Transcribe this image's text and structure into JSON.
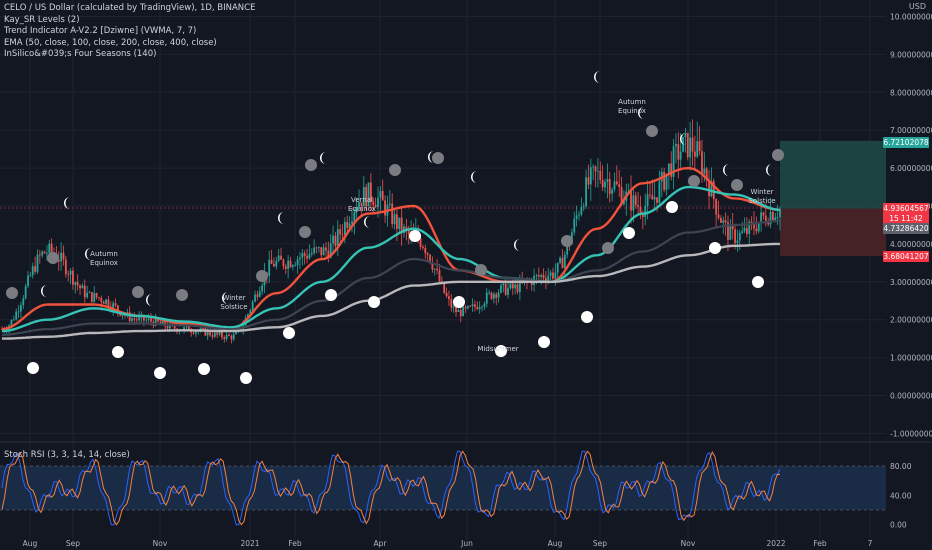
{
  "legend": {
    "symbol": "CELO / US Dollar (calculated by TradingView), 1D, BINANCE",
    "indicators": [
      "Kay_SR Levels (2)",
      "Trend Indicator A-V2.2 [Dziwne] (VWMA, 7, 7)",
      "EMA (50, close, 100, close, 200, close, 400, close)",
      "InSilico&#039;s Four Seasons (140)"
    ],
    "rsi": "Stoch RSI (3, 3, 14, 14, close)",
    "currency": "USD"
  },
  "colors": {
    "background": "#131722",
    "up": "#26a69a",
    "down": "#ef5350",
    "ema50": "#f0523c",
    "ema100": "#34c3b4",
    "ema200": "#3f4452",
    "ema400": "#b8b8bc",
    "rsi_k": "#2962ff",
    "rsi_d": "#f6823c",
    "rsi_band": "#1c3352"
  },
  "chart_data": [
    {
      "type": "line",
      "title": "CELO / US Dollar (calculated by TradingView), 1D, BINANCE",
      "ylabel": "USD",
      "ylim": [
        -1.2,
        10.5
      ],
      "y_ticks": [
        "-1.00000000",
        "0.00000000",
        "1.00000000",
        "2.00000000",
        "3.00000000",
        "4.00000000",
        "5.00000000",
        "6.00000000",
        "7.00000000",
        "8.00000000",
        "9.00000000",
        "10.00000000"
      ],
      "x_ticks": [
        "Aug",
        "Sep",
        "Nov",
        "2021",
        "Feb",
        "Apr",
        "Jun",
        "Aug",
        "Sep",
        "Nov",
        "2022",
        "Feb",
        "7"
      ],
      "x": [
        "2020-08",
        "2020-09",
        "2020-10",
        "2020-11",
        "2020-12",
        "2021-01",
        "2021-02",
        "2021-03",
        "2021-04",
        "2021-05",
        "2021-06",
        "2021-07",
        "2021-08",
        "2021-09",
        "2021-10",
        "2021-11",
        "2021-12",
        "2022-01"
      ],
      "series": [
        {
          "values": [
            1.75,
            3.8,
            2.6,
            2.0,
            1.75,
            1.55,
            3.5,
            3.8,
            5.3,
            4.2,
            2.2,
            2.8,
            3.2,
            5.8,
            5.0,
            6.6,
            4.2,
            4.9
          ]
        },
        {
          "values": [
            1.75,
            2.4,
            2.4,
            2.1,
            1.9,
            1.75,
            2.7,
            3.6,
            4.8,
            5.0,
            3.3,
            3.0,
            3.0,
            4.4,
            5.6,
            6.0,
            5.2,
            4.9
          ]
        },
        {
          "values": [
            1.7,
            2.0,
            2.3,
            2.1,
            1.95,
            1.8,
            2.3,
            3.0,
            3.9,
            4.4,
            3.6,
            3.1,
            3.0,
            3.7,
            4.8,
            5.5,
            5.3,
            4.9
          ]
        },
        {
          "values": [
            1.6,
            1.75,
            1.9,
            1.9,
            1.85,
            1.75,
            2.0,
            2.5,
            3.1,
            3.6,
            3.3,
            3.1,
            3.0,
            3.3,
            3.8,
            4.3,
            4.5,
            4.6
          ]
        },
        {
          "values": [
            1.5,
            1.55,
            1.65,
            1.7,
            1.72,
            1.7,
            1.8,
            2.1,
            2.5,
            2.9,
            3.0,
            3.0,
            3.0,
            3.15,
            3.4,
            3.7,
            3.95,
            4.0
          ]
        }
      ],
      "price_tags": [
        {
          "label": "6.72102078",
          "color": "#26a69a"
        },
        {
          "label": "4.93604567",
          "color": "#f23645"
        },
        {
          "label": "15 11:42",
          "color": "#f23645"
        },
        {
          "label": "4.73286420",
          "color": "#5d606b"
        },
        {
          "label": "3.68041207",
          "color": "#f23645"
        }
      ],
      "annotations": [
        "Autumn",
        "Equinox",
        "Winter",
        "Solstice",
        "Vernal",
        "Equinox",
        "Midsummer",
        "Autumn",
        "Equinox",
        "Winter",
        "Solstice"
      ],
      "moon_phases": [
        "full",
        "new",
        "first-quarter",
        "last-quarter"
      ]
    },
    {
      "type": "line",
      "title": "Stoch RSI (3, 3, 14, 14, close)",
      "ylim": [
        0,
        100
      ],
      "y_ticks": [
        "80.00",
        "40.00",
        "0.00"
      ],
      "bands": [
        20,
        80
      ]
    }
  ]
}
